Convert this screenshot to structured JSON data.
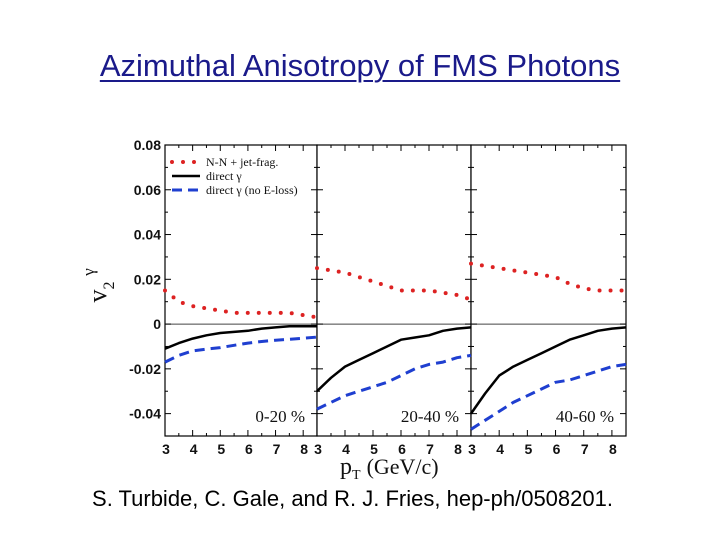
{
  "title": "Azimuthal Anisotropy of FMS Photons",
  "citation": "S. Turbide, C. Gale, and R. J. Fries, hep-ph/0508201.",
  "chart_data": {
    "type": "line",
    "ylabel": {
      "main": "v",
      "sub": "2",
      "sup": "γ"
    },
    "xlabel": {
      "main": "p",
      "sub": "T",
      "rest": "(GeV/c)"
    },
    "ylim": [
      -0.05,
      0.08
    ],
    "yticks": [
      0.08,
      0.06,
      0.04,
      0.02,
      0,
      -0.02,
      -0.04
    ],
    "ytick_labels": [
      "0.08",
      "0.06",
      "0.04",
      "0.02",
      "0",
      "-0.02",
      "-0.04"
    ],
    "xlim": [
      3,
      8.5
    ],
    "xticks": [
      3,
      4,
      5,
      6,
      7,
      8
    ],
    "xtick_labels": [
      "3",
      "4",
      "5",
      "6",
      "7",
      "8"
    ],
    "legend": [
      {
        "label": "N-N + jet-frag.",
        "style": "dotted",
        "color": "#dd2222"
      },
      {
        "label": "direct γ",
        "style": "solid",
        "color": "#000000"
      },
      {
        "label": "direct γ (no E-loss)",
        "style": "dashed",
        "color": "#1f3fd0"
      }
    ],
    "panels": [
      {
        "label": "0-20 %",
        "series": [
          {
            "name": "N-N + jet-frag.",
            "x": [
              3,
              3.5,
              4,
              4.5,
              5,
              5.5,
              6,
              6.5,
              7,
              7.5,
              8,
              8.5
            ],
            "y": [
              0.015,
              0.01,
              0.008,
              0.007,
              0.006,
              0.005,
              0.005,
              0.005,
              0.005,
              0.005,
              0.004,
              0.003
            ]
          },
          {
            "name": "direct γ",
            "x": [
              3,
              3.5,
              4,
              4.5,
              5,
              5.5,
              6,
              6.5,
              7,
              7.5,
              8,
              8.5
            ],
            "y": [
              -0.011,
              -0.0085,
              -0.0065,
              -0.005,
              -0.004,
              -0.0035,
              -0.003,
              -0.002,
              -0.0015,
              -0.001,
              -0.001,
              -0.001
            ]
          },
          {
            "name": "direct γ (no E-loss)",
            "x": [
              3,
              3.5,
              4,
              4.5,
              5,
              5.5,
              6,
              6.5,
              7,
              7.5,
              8,
              8.5
            ],
            "y": [
              -0.017,
              -0.014,
              -0.012,
              -0.0112,
              -0.0105,
              -0.0095,
              -0.0085,
              -0.0078,
              -0.0072,
              -0.0068,
              -0.0063,
              -0.0058
            ]
          }
        ]
      },
      {
        "label": "20-40 %",
        "series": [
          {
            "name": "N-N + jet-frag.",
            "x": [
              3,
              3.5,
              4,
              4.5,
              5,
              5.5,
              6,
              6.5,
              7,
              7.5,
              8,
              8.5
            ],
            "y": [
              0.025,
              0.024,
              0.023,
              0.021,
              0.019,
              0.017,
              0.015,
              0.015,
              0.015,
              0.014,
              0.013,
              0.011
            ]
          },
          {
            "name": "direct γ",
            "x": [
              3,
              3.5,
              4,
              4.5,
              5,
              5.5,
              6,
              6.5,
              7,
              7.5,
              8,
              8.5
            ],
            "y": [
              -0.03,
              -0.024,
              -0.019,
              -0.016,
              -0.013,
              -0.01,
              -0.007,
              -0.006,
              -0.005,
              -0.003,
              -0.002,
              -0.0015
            ]
          },
          {
            "name": "direct γ (no E-loss)",
            "x": [
              3,
              3.5,
              4,
              4.5,
              5,
              5.5,
              6,
              6.5,
              7,
              7.5,
              8,
              8.5
            ],
            "y": [
              -0.038,
              -0.035,
              -0.032,
              -0.03,
              -0.028,
              -0.026,
              -0.023,
              -0.02,
              -0.018,
              -0.017,
              -0.015,
              -0.014
            ]
          }
        ]
      },
      {
        "label": "40-60 %",
        "series": [
          {
            "name": "N-N + jet-frag.",
            "x": [
              3,
              3.5,
              4,
              4.5,
              5,
              5.5,
              6,
              6.5,
              7,
              7.5,
              8,
              8.5
            ],
            "y": [
              0.027,
              0.026,
              0.025,
              0.024,
              0.023,
              0.022,
              0.021,
              0.018,
              0.016,
              0.015,
              0.015,
              0.015
            ]
          },
          {
            "name": "direct γ",
            "x": [
              3,
              3.5,
              4,
              4.5,
              5,
              5.5,
              6,
              6.5,
              7,
              7.5,
              8,
              8.5
            ],
            "y": [
              -0.04,
              -0.031,
              -0.023,
              -0.019,
              -0.016,
              -0.013,
              -0.01,
              -0.007,
              -0.005,
              -0.003,
              -0.002,
              -0.0015
            ]
          },
          {
            "name": "direct γ (no E-loss)",
            "x": [
              3,
              3.5,
              4,
              4.5,
              5,
              5.5,
              6,
              6.5,
              7,
              7.5,
              8,
              8.5
            ],
            "y": [
              -0.047,
              -0.043,
              -0.039,
              -0.035,
              -0.032,
              -0.029,
              -0.026,
              -0.025,
              -0.023,
              -0.021,
              -0.019,
              -0.018
            ]
          }
        ]
      }
    ]
  }
}
